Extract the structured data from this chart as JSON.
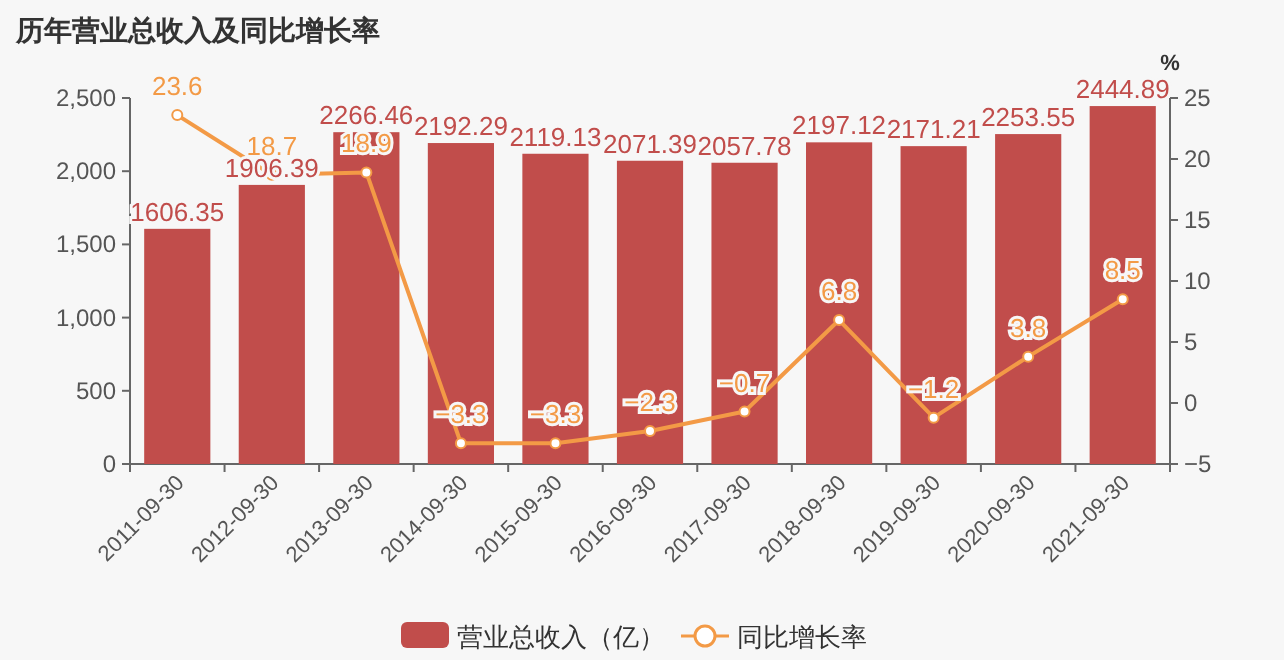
{
  "chart_data": {
    "type": "bar",
    "title": "历年营业总收入及同比增长率",
    "y2label": "%",
    "categories": [
      "2011-09-30",
      "2012-09-30",
      "2013-09-30",
      "2014-09-30",
      "2015-09-30",
      "2016-09-30",
      "2017-09-30",
      "2018-09-30",
      "2019-09-30",
      "2020-09-30",
      "2021-09-30"
    ],
    "series": [
      {
        "name": "营业总收入（亿）",
        "color": "#c14d4b",
        "values": [
          1606.35,
          1906.39,
          2266.46,
          2192.29,
          2119.13,
          2071.39,
          2057.78,
          2197.12,
          2171.21,
          2253.55,
          2444.89
        ]
      },
      {
        "name": "同比增长率",
        "type": "line",
        "axis": "y2",
        "color": "#f39a46",
        "marker": "circle",
        "values": [
          23.6,
          18.7,
          18.9,
          -3.3,
          -3.3,
          -2.3,
          -0.7,
          6.8,
          -1.2,
          3.8,
          8.5
        ]
      }
    ],
    "ylim": [
      0,
      2500
    ],
    "yticks": [
      0,
      500,
      {
        "value": 1000,
        "label": "1,000"
      },
      {
        "value": 1500,
        "label": "1,500"
      },
      {
        "value": 2000,
        "label": "2,000"
      },
      {
        "value": 2500,
        "label": "2,500"
      }
    ],
    "y2lim": [
      -5,
      25
    ],
    "y2ticks": [
      {
        "value": -5,
        "label": "−5"
      },
      0,
      5,
      10,
      15,
      20,
      25
    ],
    "data_labels": true,
    "legend": "bottom",
    "grid": false
  }
}
